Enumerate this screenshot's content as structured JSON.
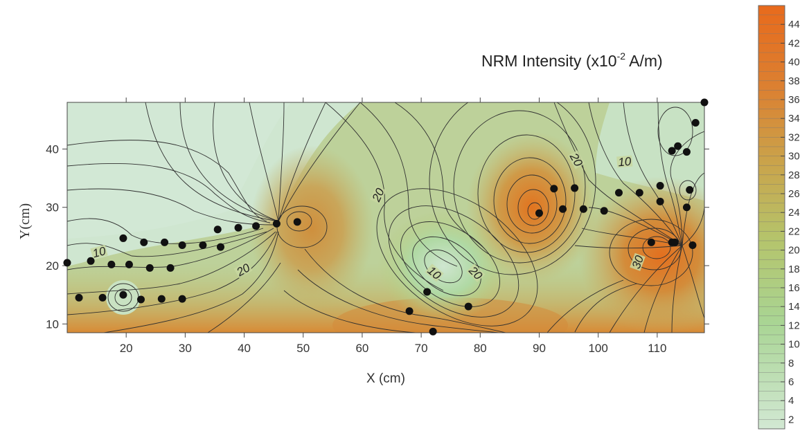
{
  "chart_data": {
    "type": "heatmap",
    "title": "NRM Intensity (x10",
    "title_exponent": "-2",
    "title_unit": " A/m)",
    "xlabel": "X (cm)",
    "ylabel": "Y(cm)",
    "xlim": [
      10,
      118
    ],
    "ylim": [
      8.5,
      48
    ],
    "x_ticks": [
      20,
      30,
      40,
      50,
      60,
      70,
      80,
      90,
      100,
      110
    ],
    "y_ticks": [
      10,
      20,
      30,
      40
    ],
    "colorbar": {
      "ticks": [
        2,
        4,
        6,
        8,
        10,
        12,
        14,
        16,
        18,
        20,
        22,
        24,
        26,
        28,
        30,
        32,
        34,
        36,
        38,
        40,
        42,
        44
      ],
      "min": 1,
      "max": 46,
      "colors": [
        "#cfe6cf",
        "#a8d38c",
        "#c9ad52",
        "#e3701d"
      ]
    },
    "contour_labels": [
      {
        "text": "10",
        "x": 15.5,
        "y": 22,
        "rot": -15
      },
      {
        "text": "20",
        "x": 40,
        "y": 19,
        "rot": -30
      },
      {
        "text": "20",
        "x": 63,
        "y": 32,
        "rot": -65
      },
      {
        "text": "10",
        "x": 72,
        "y": 18.5,
        "rot": 40
      },
      {
        "text": "20",
        "x": 79,
        "y": 18.5,
        "rot": 45
      },
      {
        "text": "20",
        "x": 96,
        "y": 38,
        "rot": 60
      },
      {
        "text": "10",
        "x": 104.5,
        "y": 37.5,
        "rot": -5
      },
      {
        "text": "30",
        "x": 107,
        "y": 20.5,
        "rot": -70
      }
    ],
    "points": [
      [
        10,
        20.5
      ],
      [
        12,
        14.5
      ],
      [
        14,
        20.8
      ],
      [
        16,
        14.5
      ],
      [
        17.5,
        20.2
      ],
      [
        19.5,
        24.7
      ],
      [
        19.5,
        15
      ],
      [
        20.5,
        20.2
      ],
      [
        22.5,
        14.2
      ],
      [
        23,
        24
      ],
      [
        24,
        19.6
      ],
      [
        26,
        14.3
      ],
      [
        26.5,
        24
      ],
      [
        27.5,
        19.6
      ],
      [
        29.5,
        14.3
      ],
      [
        29.5,
        23.5
      ],
      [
        33,
        23.5
      ],
      [
        35.5,
        26.2
      ],
      [
        36,
        23.2
      ],
      [
        39,
        26.5
      ],
      [
        42,
        26.8
      ],
      [
        45.5,
        27.2
      ],
      [
        49,
        27.5
      ],
      [
        68,
        12.2
      ],
      [
        71,
        15.5
      ],
      [
        72,
        8.7
      ],
      [
        78,
        13
      ],
      [
        90,
        29
      ],
      [
        92.5,
        33.2
      ],
      [
        94,
        29.7
      ],
      [
        96,
        33.3
      ],
      [
        97.5,
        29.7
      ],
      [
        101,
        29.4
      ],
      [
        103.5,
        32.5
      ],
      [
        107,
        32.5
      ],
      [
        109,
        24
      ],
      [
        110.5,
        31
      ],
      [
        110.5,
        33.7
      ],
      [
        112.5,
        24
      ],
      [
        113,
        24
      ],
      [
        112.5,
        39.7
      ],
      [
        113.5,
        40.5
      ],
      [
        115,
        39.5
      ],
      [
        115,
        30
      ],
      [
        115.5,
        33
      ],
      [
        116,
        23.5
      ],
      [
        116.5,
        44.5
      ],
      [
        118,
        48
      ]
    ]
  }
}
